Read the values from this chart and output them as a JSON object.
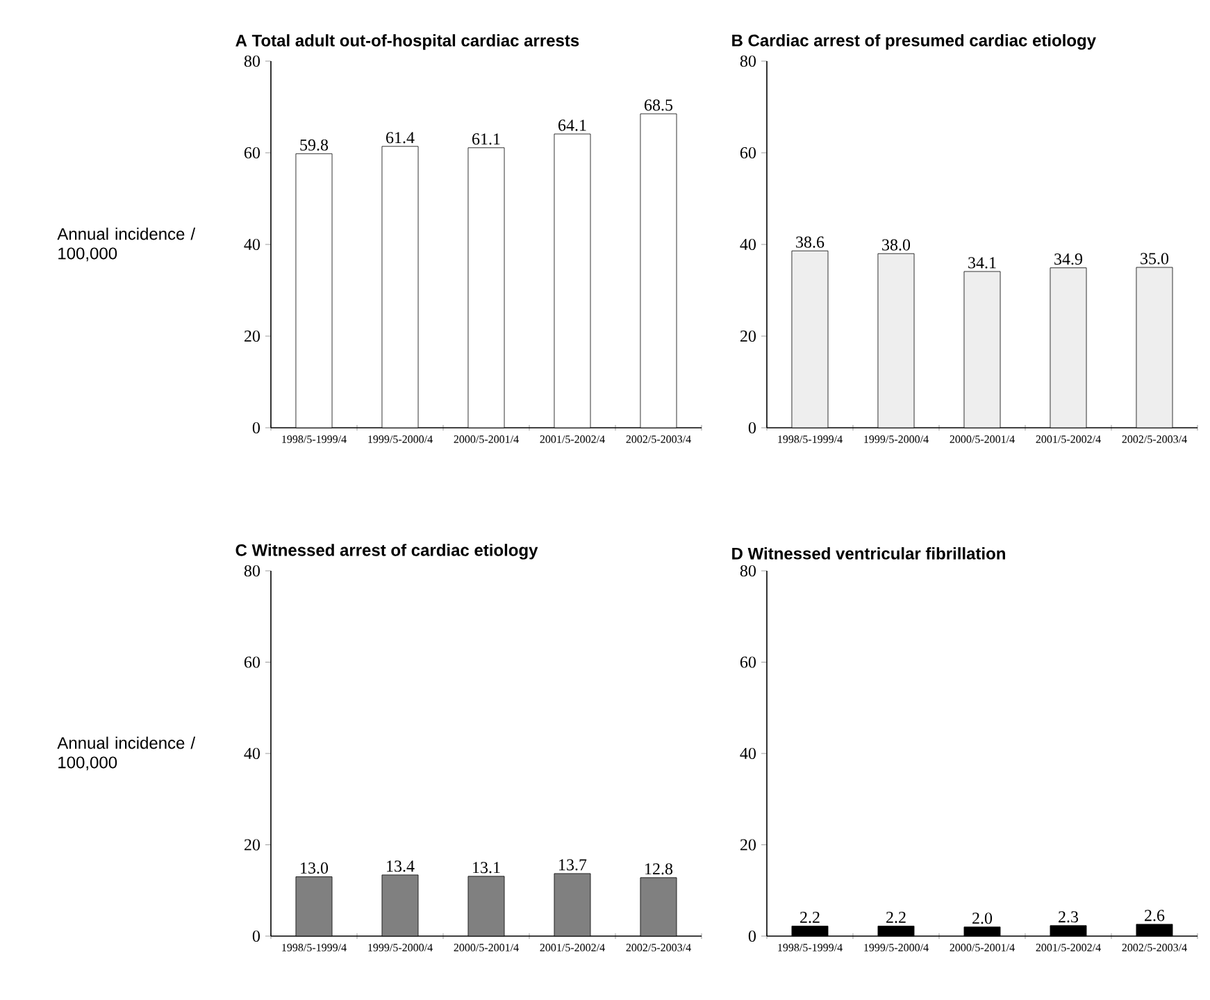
{
  "chart_data": [
    {
      "type": "bar",
      "title": "**A** Total adult out-of-hospital cardiac arrests",
      "ylabel": "Annual incidence / 100,000",
      "categories": [
        "1998/5-1999/4",
        "1999/5-2000/4",
        "2000/5-2001/4",
        "2001/5-2002/4",
        "2002/5-2003/4"
      ],
      "values": [
        59.8,
        61.4,
        61.1,
        64.1,
        68.5
      ],
      "value_labels": [
        "59.8",
        "61.4",
        "61.1",
        "64.1",
        "68.5"
      ],
      "color": "#ffffff",
      "ylim": [
        0,
        80
      ],
      "yticks": [
        0,
        20,
        40,
        60,
        80
      ]
    },
    {
      "type": "bar",
      "title": "**B** Cardiac arrest of presumed cardiac etiology",
      "categories": [
        "1998/5-1999/4",
        "1999/5-2000/4",
        "2000/5-2001/4",
        "2001/5-2002/4",
        "2002/5-2003/4"
      ],
      "values": [
        38.6,
        38.0,
        34.1,
        34.9,
        35.0
      ],
      "value_labels": [
        "38.6",
        "38.0",
        "34.1",
        "34.9",
        "35.0"
      ],
      "color": "#eeeeee",
      "ylim": [
        0,
        80
      ],
      "yticks": [
        0,
        20,
        40,
        60,
        80
      ]
    },
    {
      "type": "bar",
      "title": "**C** Witnessed arrest of cardiac etiology",
      "ylabel": "Annual incidence / 100,000",
      "categories": [
        "1998/5-1999/4",
        "1999/5-2000/4",
        "2000/5-2001/4",
        "2001/5-2002/4",
        "2002/5-2003/4"
      ],
      "values": [
        13.0,
        13.4,
        13.1,
        13.7,
        12.8
      ],
      "value_labels": [
        "13.0",
        "13.4",
        "13.1",
        "13.7",
        "12.8"
      ],
      "color": "#808080",
      "ylim": [
        0,
        80
      ],
      "yticks": [
        0,
        20,
        40,
        60,
        80
      ]
    },
    {
      "type": "bar",
      "title": "**D** Witnessed ventricular fibrillation",
      "categories": [
        "1998/5-1999/4",
        "1999/5-2000/4",
        "2000/5-2001/4",
        "2001/5-2002/4",
        "2002/5-2003/4"
      ],
      "values": [
        2.2,
        2.2,
        2.0,
        2.3,
        2.6
      ],
      "value_labels": [
        "2.2",
        "2.2",
        "2.0",
        "2.3",
        "2.6"
      ],
      "color": "#000000",
      "ylim": [
        0,
        80
      ],
      "yticks": [
        0,
        20,
        40,
        60,
        80
      ]
    }
  ]
}
